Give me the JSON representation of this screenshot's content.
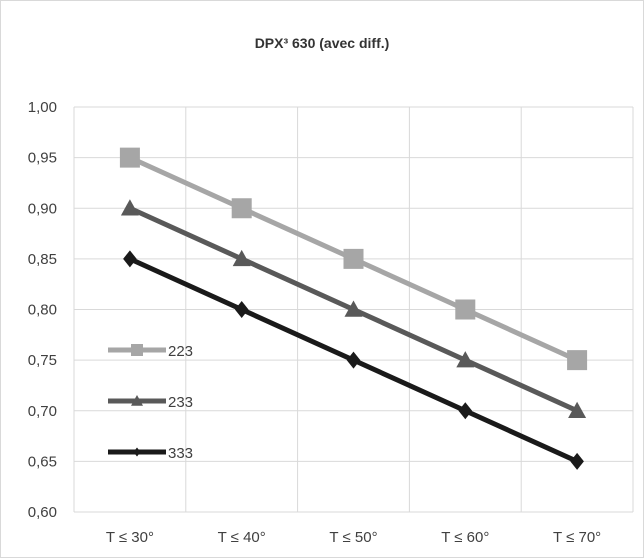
{
  "chart_data": {
    "type": "line",
    "title": "DPX³ 630 (avec diff.)",
    "xlabel": "",
    "ylabel": "",
    "categories": [
      "T ≤ 30°",
      "T ≤ 40°",
      "T ≤ 50°",
      "T ≤ 60°",
      "T ≤ 70°"
    ],
    "ylim": [
      0.6,
      1.0
    ],
    "yticks": [
      "0,60",
      "0,65",
      "0,70",
      "0,75",
      "0,80",
      "0,85",
      "0,90",
      "0,95",
      "1,00"
    ],
    "grid": true,
    "legend_position": "left",
    "series": [
      {
        "name": "223",
        "values": [
          0.95,
          0.9,
          0.85,
          0.8,
          0.75
        ],
        "color": "#a6a6a6",
        "marker": "square"
      },
      {
        "name": "233",
        "values": [
          0.9,
          0.85,
          0.8,
          0.75,
          0.7
        ],
        "color": "#595959",
        "marker": "triangle"
      },
      {
        "name": "333",
        "values": [
          0.85,
          0.8,
          0.75,
          0.7,
          0.65
        ],
        "color": "#1a1a1a",
        "marker": "diamond"
      }
    ]
  }
}
